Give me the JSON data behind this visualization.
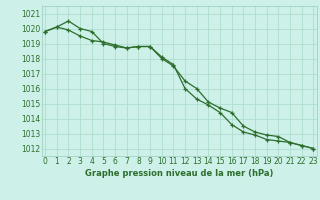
{
  "title": "Graphe pression niveau de la mer (hPa)",
  "background_color": "#cdf0e8",
  "grid_color": "#b0ddd0",
  "line_color": "#2d6e2d",
  "marker_color": "#2d6e2d",
  "ylim": [
    1011.5,
    1021.5
  ],
  "yticks": [
    1012,
    1013,
    1014,
    1015,
    1016,
    1017,
    1018,
    1019,
    1020,
    1021
  ],
  "xlim": [
    -0.3,
    23.3
  ],
  "xticks": [
    0,
    1,
    2,
    3,
    4,
    5,
    6,
    7,
    8,
    9,
    10,
    11,
    12,
    13,
    14,
    15,
    16,
    17,
    18,
    19,
    20,
    21,
    22,
    23
  ],
  "series1": [
    1019.8,
    1020.1,
    1020.5,
    1020.0,
    1019.8,
    1019.0,
    1018.8,
    1018.7,
    1018.8,
    1018.8,
    1018.1,
    1017.6,
    1016.0,
    1015.3,
    1014.9,
    1014.4,
    1013.6,
    1013.1,
    1012.9,
    1012.6,
    1012.5,
    1012.4,
    1012.2,
    1012.0
  ],
  "series2": [
    1019.8,
    1020.1,
    1019.9,
    1019.5,
    1019.2,
    1019.1,
    1018.9,
    1018.7,
    1018.8,
    1018.8,
    1018.0,
    1017.5,
    1016.5,
    1016.0,
    1015.1,
    1014.7,
    1014.4,
    1013.5,
    1013.1,
    1012.9,
    1012.8,
    1012.4,
    1012.2,
    1012.0
  ],
  "tick_fontsize": 5.5,
  "label_fontsize": 6.0
}
